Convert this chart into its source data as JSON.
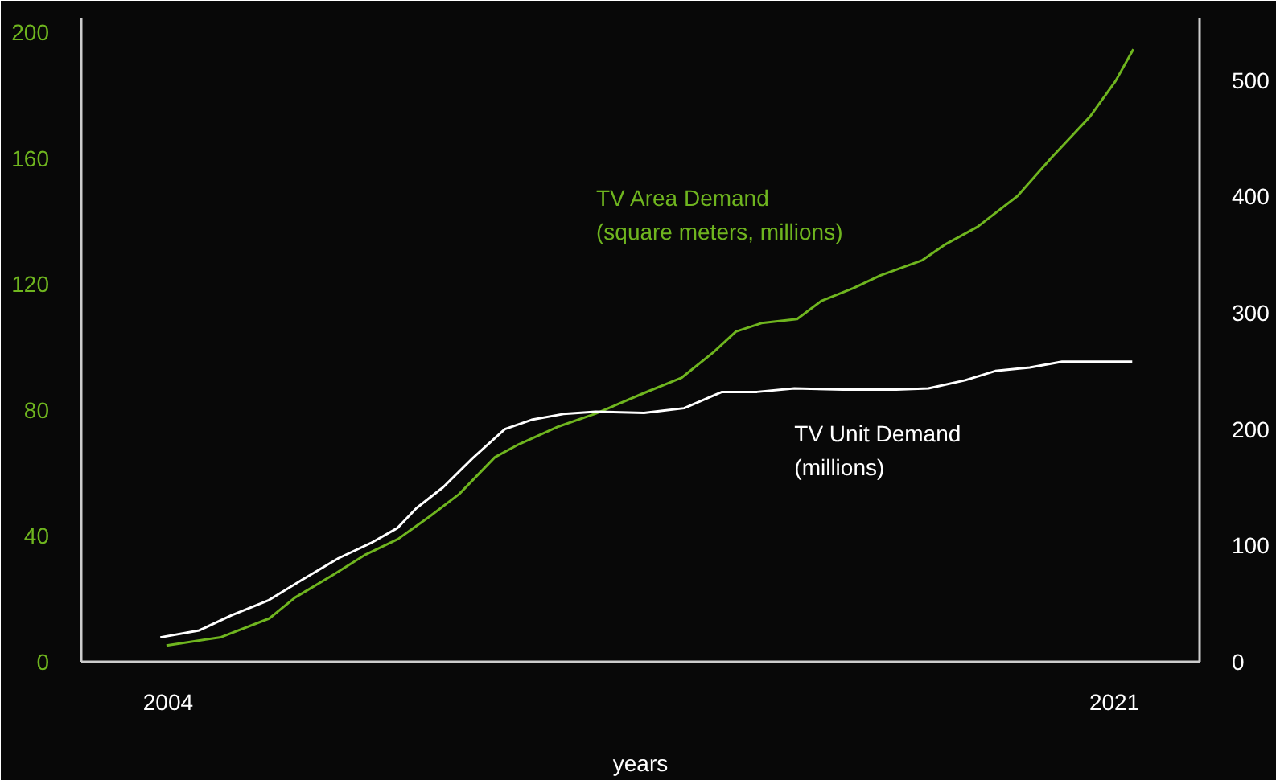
{
  "chart_data": {
    "type": "line",
    "xlabel": "years",
    "xlim": [
      2002.44,
      2022.53
    ],
    "xticks": [
      2004,
      2021
    ],
    "ylim": [
      0,
      204.4
    ],
    "yticks": [
      0,
      40,
      80,
      120,
      160,
      200
    ],
    "y2lim": [
      0,
      553
    ],
    "y2ticks": [
      0,
      100,
      200,
      300,
      400,
      500
    ],
    "grid": false,
    "marker": "none",
    "line_style": "solid",
    "series": [
      {
        "name": "TV Area Demand\n(square meters, millions)",
        "color": "#6fb51f",
        "x": [
          2003.97,
          2004.95,
          2005.82,
          2006.28,
          2006.98,
          2007.55,
          2008.13,
          2008.71,
          2009.23,
          2009.87,
          2010.3,
          2011.02,
          2011.69,
          2012.55,
          2013.22,
          2013.8,
          2014.2,
          2014.66,
          2015.3,
          2015.73,
          2016.31,
          2016.8,
          2017.55,
          2017.95,
          2018.54,
          2019.26,
          2019.87,
          2020.56,
          2021.02,
          2021.34
        ],
        "values": [
          5.2,
          7.8,
          13.8,
          20.4,
          27.8,
          34.1,
          39.0,
          46.3,
          53.3,
          65.0,
          69.1,
          74.8,
          78.9,
          85.4,
          90.2,
          98.4,
          104.9,
          107.6,
          108.9,
          114.6,
          118.7,
          122.8,
          127.6,
          132.5,
          138.2,
          148.0,
          160.2,
          173.2,
          184.5,
          194.6
        ]
      },
      {
        "name": "TV Unit Demand\n(millions)",
        "color": "#ffffff",
        "axis": "y2",
        "x": [
          2003.86,
          2004.56,
          2005.14,
          2005.81,
          2006.39,
          2007.06,
          2007.64,
          2008.12,
          2008.46,
          2008.94,
          2009.47,
          2010.05,
          2010.53,
          2011.1,
          2011.68,
          2012.55,
          2013.27,
          2013.95,
          2014.58,
          2015.25,
          2016.12,
          2017.08,
          2017.66,
          2018.32,
          2018.86,
          2019.48,
          2020.06,
          2021.32
        ],
        "values": [
          21,
          27,
          40,
          53,
          70,
          89,
          102,
          115,
          132,
          150,
          175,
          200,
          208,
          213,
          215,
          214,
          218,
          232,
          232,
          235,
          234,
          234,
          235,
          242,
          250,
          253,
          258,
          258
        ]
      }
    ]
  }
}
